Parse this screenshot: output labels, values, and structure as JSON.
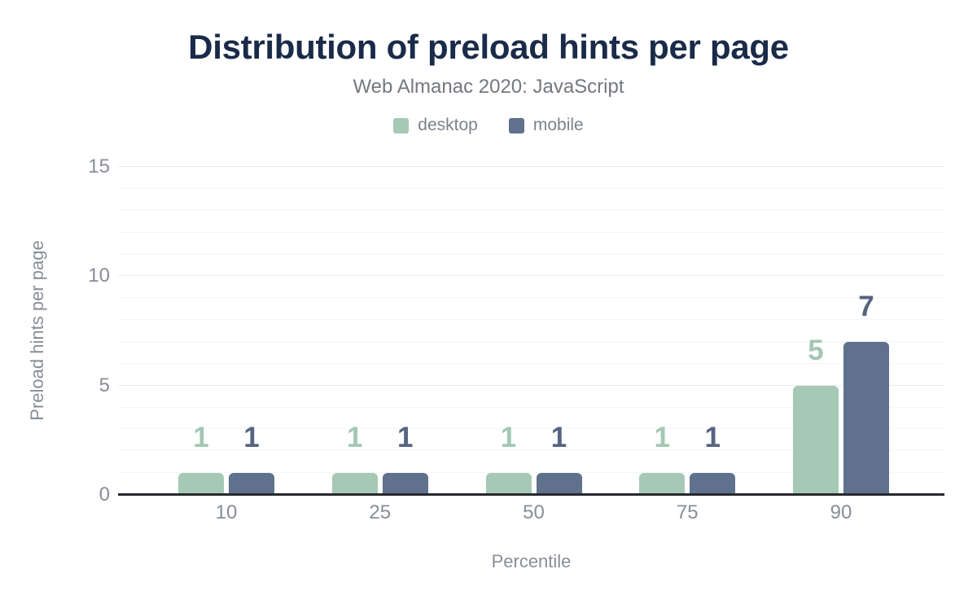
{
  "header": {
    "title": "Distribution of preload hints per page",
    "subtitle": "Web Almanac 2020: JavaScript"
  },
  "legend": [
    {
      "label": "desktop",
      "color": "#a6c9b6"
    },
    {
      "label": "mobile",
      "color": "#5f718c"
    }
  ],
  "chart_data": {
    "type": "bar",
    "title": "Distribution of preload hints per page",
    "subtitle": "Web Almanac 2020: JavaScript",
    "categories": [
      "10",
      "25",
      "50",
      "75",
      "90"
    ],
    "series": [
      {
        "name": "desktop",
        "color": "#a6c9b6",
        "label_color": "#a3c7b3",
        "values": [
          1,
          1,
          1,
          1,
          5
        ]
      },
      {
        "name": "mobile",
        "color": "#5f718c",
        "label_color": "#556480",
        "values": [
          1,
          1,
          1,
          1,
          7
        ]
      }
    ],
    "xlabel": "Percentile",
    "ylabel": "Preload hints per page",
    "ylim": [
      0,
      15
    ],
    "yticks": [
      0,
      5,
      10,
      15
    ],
    "grid": true,
    "minor_grid_step": 1,
    "major_grid_step": 5,
    "legend_position": "top",
    "bar_corner_radius": 6,
    "value_labels_shown": true,
    "colors": {
      "title": "#1a2b49",
      "subtitle": "#74787e",
      "axis_text": "#888d96",
      "baseline": "#26292d",
      "background": "#ffffff"
    }
  }
}
